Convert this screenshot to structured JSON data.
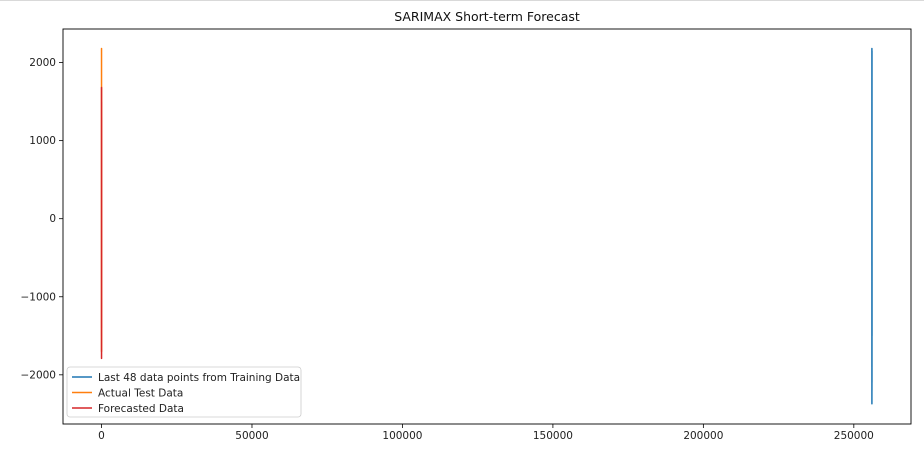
{
  "chart_data": {
    "type": "line",
    "title": "SARIMAX Short-term Forecast",
    "xlabel": "",
    "ylabel": "",
    "xlim": [
      -12800,
      269000
    ],
    "ylim": [
      -2630,
      2430
    ],
    "xticks": [
      0,
      50000,
      100000,
      150000,
      200000,
      250000
    ],
    "yticks": [
      -2000,
      -1000,
      0,
      1000,
      2000
    ],
    "grid": false,
    "legend_position": "lower left",
    "series": [
      {
        "name": "Last 48 data points from Training Data",
        "color": "#1f77b4",
        "x": [
          256001,
          256003,
          256005,
          256008,
          256010,
          256013,
          256016,
          256018,
          256021,
          256024,
          256027,
          256030,
          256033,
          256036,
          256039,
          256042,
          256045,
          256048
        ],
        "y": [
          -600,
          1800,
          -1900,
          2180,
          -2370,
          1500,
          -1200,
          2000,
          -2200,
          900,
          -800,
          1700,
          -2100,
          2150,
          -1000,
          600,
          -1500,
          -550
        ]
      },
      {
        "name": "Actual Test Data",
        "color": "#ff7f0e",
        "x": [
          0,
          2,
          4,
          6,
          8,
          10,
          12,
          14,
          16,
          18,
          20,
          22
        ],
        "y": [
          1600,
          -1400,
          2180,
          -1700,
          1200,
          -900,
          1700,
          -1600,
          800,
          -1200,
          1500,
          -500
        ]
      },
      {
        "name": "Forecasted Data",
        "color": "#d62728",
        "x": [
          0,
          2,
          4,
          6,
          8,
          10,
          12,
          14,
          16,
          18,
          20,
          22
        ],
        "y": [
          1200,
          -1500,
          1680,
          -1790,
          1100,
          -1000,
          1500,
          -1400,
          700,
          -1100,
          1300,
          -300
        ]
      }
    ]
  }
}
